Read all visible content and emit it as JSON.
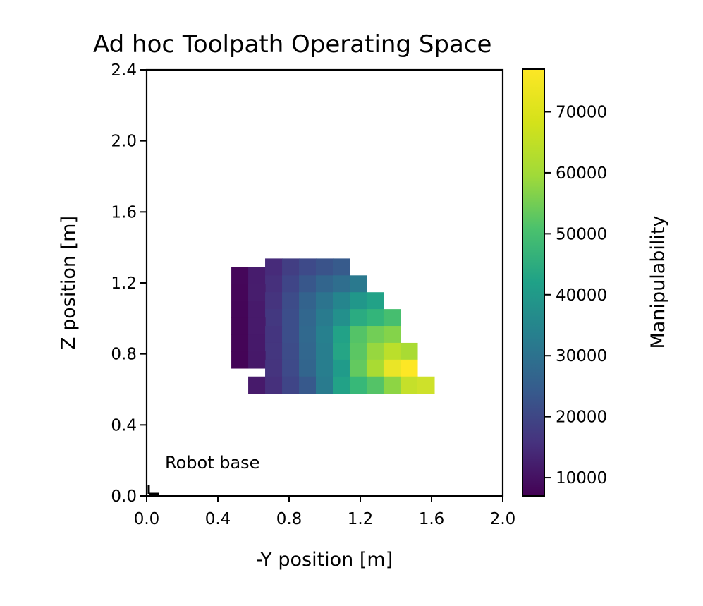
{
  "chart_data": {
    "type": "heatmap",
    "title": "Ad hoc Toolpath Operating Space",
    "xlabel": "-Y position [m]",
    "ylabel": "Z position [m]",
    "xlim": [
      0.0,
      2.0
    ],
    "ylim": [
      0.0,
      2.4
    ],
    "xticks": [
      "0.0",
      "0.4",
      "0.8",
      "1.2",
      "1.6",
      "2.0"
    ],
    "yticks": [
      "0.0",
      "0.4",
      "0.8",
      "1.2",
      "1.6",
      "2.0",
      "2.4"
    ],
    "colorbar": {
      "label": "Manipulability",
      "range": [
        7000,
        77000
      ],
      "ticks": [
        "10000",
        "20000",
        "30000",
        "40000",
        "50000",
        "60000",
        "70000"
      ],
      "colormap": "viridis"
    },
    "annotation": {
      "text": "Robot base",
      "marker_x": 0.0,
      "marker_y": 0.0
    },
    "grid": false,
    "cell_size": 0.095,
    "cells": [
      {
        "x": 0.523,
        "y": 1.242,
        "v": 8200
      },
      {
        "x": 0.618,
        "y": 1.242,
        "v": 12300
      },
      {
        "x": 0.713,
        "y": 1.29,
        "v": 15500
      },
      {
        "x": 0.808,
        "y": 1.29,
        "v": 19800
      },
      {
        "x": 0.903,
        "y": 1.29,
        "v": 22500
      },
      {
        "x": 0.998,
        "y": 1.29,
        "v": 24800
      },
      {
        "x": 1.093,
        "y": 1.29,
        "v": 27000
      },
      {
        "x": 0.713,
        "y": 1.195,
        "v": 16500
      },
      {
        "x": 0.808,
        "y": 1.195,
        "v": 21500
      },
      {
        "x": 0.903,
        "y": 1.195,
        "v": 26000
      },
      {
        "x": 0.998,
        "y": 1.195,
        "v": 29500
      },
      {
        "x": 1.093,
        "y": 1.195,
        "v": 32000
      },
      {
        "x": 1.188,
        "y": 1.195,
        "v": 35500
      },
      {
        "x": 0.523,
        "y": 1.147,
        "v": 8000
      },
      {
        "x": 0.618,
        "y": 1.147,
        "v": 12500
      },
      {
        "x": 0.523,
        "y": 1.052,
        "v": 7800
      },
      {
        "x": 0.618,
        "y": 1.052,
        "v": 12000
      },
      {
        "x": 0.713,
        "y": 1.1,
        "v": 17500
      },
      {
        "x": 0.808,
        "y": 1.1,
        "v": 23000
      },
      {
        "x": 0.903,
        "y": 1.1,
        "v": 29000
      },
      {
        "x": 0.998,
        "y": 1.1,
        "v": 34000
      },
      {
        "x": 1.093,
        "y": 1.1,
        "v": 39000
      },
      {
        "x": 1.188,
        "y": 1.1,
        "v": 44000
      },
      {
        "x": 1.283,
        "y": 1.1,
        "v": 47000
      },
      {
        "x": 0.713,
        "y": 1.005,
        "v": 18500
      },
      {
        "x": 0.808,
        "y": 1.005,
        "v": 23500
      },
      {
        "x": 0.903,
        "y": 1.005,
        "v": 30000
      },
      {
        "x": 0.998,
        "y": 1.005,
        "v": 36000
      },
      {
        "x": 1.093,
        "y": 1.005,
        "v": 42000
      },
      {
        "x": 1.188,
        "y": 1.005,
        "v": 50000
      },
      {
        "x": 1.283,
        "y": 1.005,
        "v": 53000
      },
      {
        "x": 1.378,
        "y": 1.005,
        "v": 56000
      },
      {
        "x": 0.523,
        "y": 0.957,
        "v": 7700
      },
      {
        "x": 0.618,
        "y": 0.957,
        "v": 12000
      },
      {
        "x": 0.523,
        "y": 0.862,
        "v": 7700
      },
      {
        "x": 0.618,
        "y": 0.862,
        "v": 11800
      },
      {
        "x": 0.713,
        "y": 0.91,
        "v": 17800
      },
      {
        "x": 0.808,
        "y": 0.91,
        "v": 23500
      },
      {
        "x": 0.903,
        "y": 0.91,
        "v": 30500
      },
      {
        "x": 0.998,
        "y": 0.91,
        "v": 37500
      },
      {
        "x": 1.093,
        "y": 0.91,
        "v": 47000
      },
      {
        "x": 1.188,
        "y": 0.91,
        "v": 58000
      },
      {
        "x": 1.283,
        "y": 0.91,
        "v": 62000
      },
      {
        "x": 1.378,
        "y": 0.91,
        "v": 64000
      },
      {
        "x": 0.713,
        "y": 0.815,
        "v": 18000
      },
      {
        "x": 0.808,
        "y": 0.815,
        "v": 23000
      },
      {
        "x": 0.903,
        "y": 0.815,
        "v": 30000
      },
      {
        "x": 0.998,
        "y": 0.815,
        "v": 37000
      },
      {
        "x": 1.093,
        "y": 0.815,
        "v": 48000
      },
      {
        "x": 1.188,
        "y": 0.815,
        "v": 59000
      },
      {
        "x": 1.283,
        "y": 0.815,
        "v": 66000
      },
      {
        "x": 1.378,
        "y": 0.815,
        "v": 70000
      },
      {
        "x": 1.473,
        "y": 0.815,
        "v": 68000
      },
      {
        "x": 0.523,
        "y": 0.767,
        "v": 7600
      },
      {
        "x": 0.618,
        "y": 0.767,
        "v": 11500
      },
      {
        "x": 0.713,
        "y": 0.72,
        "v": 17500
      },
      {
        "x": 0.808,
        "y": 0.72,
        "v": 22500
      },
      {
        "x": 0.903,
        "y": 0.72,
        "v": 29500
      },
      {
        "x": 0.998,
        "y": 0.72,
        "v": 37000
      },
      {
        "x": 1.093,
        "y": 0.72,
        "v": 45000
      },
      {
        "x": 1.188,
        "y": 0.72,
        "v": 60000
      },
      {
        "x": 1.283,
        "y": 0.72,
        "v": 68000
      },
      {
        "x": 1.378,
        "y": 0.72,
        "v": 75000
      },
      {
        "x": 1.473,
        "y": 0.72,
        "v": 77000
      },
      {
        "x": 0.618,
        "y": 0.625,
        "v": 12000
      },
      {
        "x": 0.713,
        "y": 0.625,
        "v": 16500
      },
      {
        "x": 0.808,
        "y": 0.625,
        "v": 21500
      },
      {
        "x": 0.903,
        "y": 0.625,
        "v": 26500
      },
      {
        "x": 0.998,
        "y": 0.625,
        "v": 36000
      },
      {
        "x": 1.093,
        "y": 0.625,
        "v": 47000
      },
      {
        "x": 1.188,
        "y": 0.625,
        "v": 54000
      },
      {
        "x": 1.283,
        "y": 0.625,
        "v": 58000
      },
      {
        "x": 1.378,
        "y": 0.625,
        "v": 65000
      },
      {
        "x": 1.473,
        "y": 0.625,
        "v": 71000
      },
      {
        "x": 1.568,
        "y": 0.625,
        "v": 72000
      }
    ]
  }
}
